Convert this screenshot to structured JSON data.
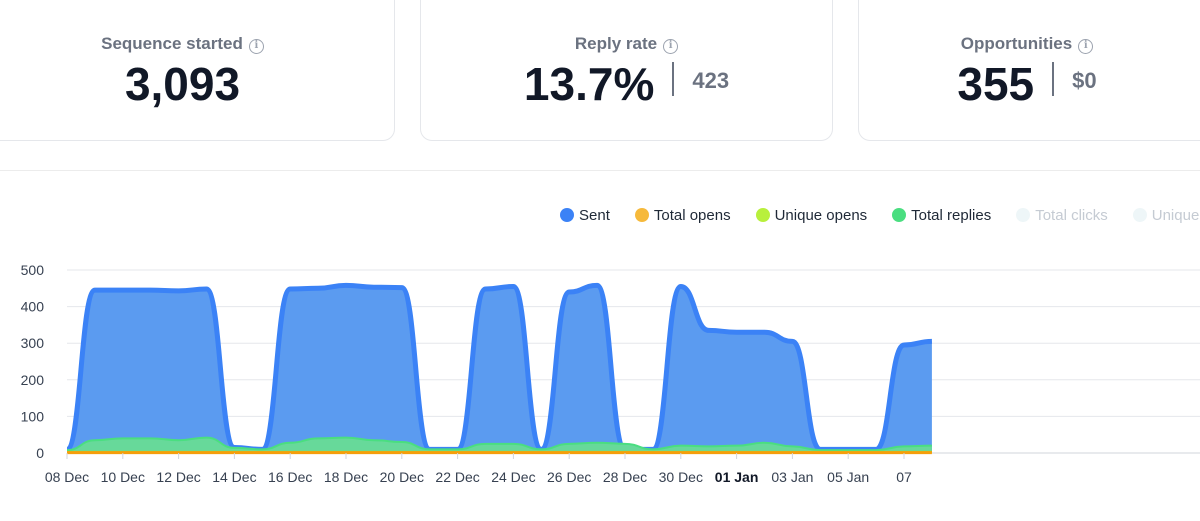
{
  "cards": [
    {
      "title": "Sequence started",
      "value": "3,093",
      "sub": ""
    },
    {
      "title": "Reply rate",
      "value": "13.7%",
      "sub": "423"
    },
    {
      "title": "Opportunities",
      "value": "355",
      "sub": "$0"
    }
  ],
  "info_icon": "i",
  "colors": {
    "sent": "#3b82f6",
    "total_opens": "#f6b93b",
    "unique_opens": "#b8f03c",
    "total_replies": "#4ade80"
  },
  "chart_data": {
    "type": "area",
    "title": "",
    "xlabel": "",
    "ylabel": "",
    "ylim": [
      0,
      500
    ],
    "yticks": [
      0,
      100,
      200,
      300,
      400,
      500
    ],
    "grid": true,
    "legend_position": "top-right",
    "legend": [
      {
        "name": "Sent",
        "color": "#3b82f6",
        "active": true
      },
      {
        "name": "Total opens",
        "color": "#f6b93b",
        "active": true
      },
      {
        "name": "Unique opens",
        "color": "#b8f03c",
        "active": true
      },
      {
        "name": "Total replies",
        "color": "#4ade80",
        "active": true
      },
      {
        "name": "Total clicks",
        "color": "#eef6f8",
        "active": false
      },
      {
        "name": "Unique cl",
        "color": "#eef6f8",
        "active": false
      }
    ],
    "x_ticks": [
      "08 Dec",
      "10 Dec",
      "12 Dec",
      "14 Dec",
      "16 Dec",
      "18 Dec",
      "20 Dec",
      "22 Dec",
      "24 Dec",
      "26 Dec",
      "28 Dec",
      "30 Dec",
      "01 Jan",
      "03 Jan",
      "05 Jan",
      "07"
    ],
    "bold_tick": "01 Jan",
    "x": [
      "08 Dec",
      "09 Dec",
      "10 Dec",
      "11 Dec",
      "12 Dec",
      "13 Dec",
      "14 Dec",
      "15 Dec",
      "16 Dec",
      "17 Dec",
      "18 Dec",
      "19 Dec",
      "20 Dec",
      "21 Dec",
      "22 Dec",
      "23 Dec",
      "24 Dec",
      "25 Dec",
      "26 Dec",
      "27 Dec",
      "28 Dec",
      "29 Dec",
      "30 Dec",
      "31 Dec",
      "01 Jan",
      "02 Jan",
      "03 Jan",
      "04 Jan",
      "05 Jan",
      "06 Jan",
      "07 Jan",
      "08 Jan"
    ],
    "series": [
      {
        "name": "Sent",
        "values": [
          10,
          445,
          445,
          445,
          443,
          448,
          15,
          10,
          448,
          450,
          458,
          453,
          452,
          10,
          10,
          448,
          455,
          10,
          440,
          458,
          10,
          10,
          455,
          335,
          330,
          330,
          305,
          10,
          10,
          10,
          295,
          305
        ]
      },
      {
        "name": "Total replies",
        "values": [
          8,
          35,
          40,
          40,
          35,
          42,
          14,
          10,
          28,
          40,
          42,
          35,
          30,
          10,
          10,
          25,
          25,
          10,
          25,
          28,
          25,
          10,
          20,
          18,
          20,
          28,
          18,
          8,
          8,
          8,
          18,
          20
        ]
      },
      {
        "name": "Unique opens",
        "values": [
          3,
          3,
          3,
          3,
          3,
          3,
          3,
          3,
          3,
          3,
          3,
          3,
          3,
          3,
          3,
          3,
          3,
          3,
          3,
          3,
          3,
          3,
          3,
          3,
          3,
          3,
          3,
          3,
          3,
          3,
          3,
          3
        ]
      },
      {
        "name": "Total opens",
        "values": [
          1,
          1,
          1,
          1,
          1,
          1,
          1,
          1,
          1,
          1,
          1,
          1,
          1,
          1,
          1,
          1,
          1,
          1,
          1,
          1,
          1,
          1,
          1,
          1,
          1,
          1,
          1,
          1,
          1,
          1,
          1,
          1
        ]
      }
    ]
  }
}
